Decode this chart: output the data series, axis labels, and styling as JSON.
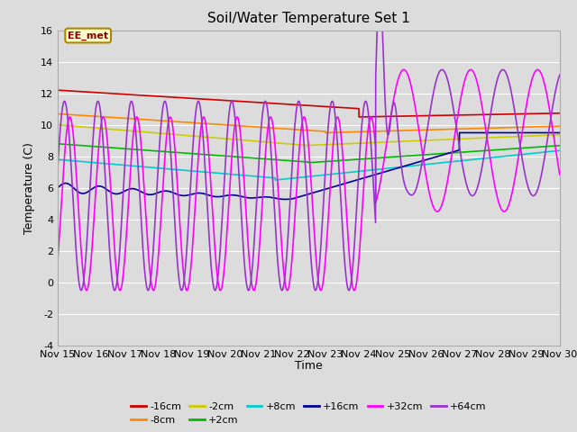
{
  "title": "Soil/Water Temperature Set 1",
  "xlabel": "Time",
  "ylabel": "Temperature (C)",
  "ylim": [
    -4,
    16
  ],
  "xlim": [
    0,
    15
  ],
  "yticks": [
    -4,
    -2,
    0,
    2,
    4,
    6,
    8,
    10,
    12,
    14,
    16
  ],
  "xtick_labels": [
    "Nov 15",
    "Nov 16",
    "Nov 17",
    "Nov 18",
    "Nov 19",
    "Nov 20",
    "Nov 21",
    "Nov 22",
    "Nov 23",
    "Nov 24",
    "Nov 25",
    "Nov 26",
    "Nov 27",
    "Nov 28",
    "Nov 29",
    "Nov 30"
  ],
  "bg_color": "#dcdcdc",
  "plot_bg_color": "#dcdcdc",
  "series_colors": [
    "#cc0000",
    "#ff8800",
    "#cccc00",
    "#00bb00",
    "#00cccc",
    "#000099",
    "#ff00ff",
    "#9933cc"
  ],
  "series_labels": [
    "-16cm",
    "-8cm",
    "-2cm",
    "+2cm",
    "+8cm",
    "+16cm",
    "+32cm",
    "+64cm"
  ],
  "annotation_text": "EE_met",
  "figsize": [
    6.4,
    4.8
  ],
  "dpi": 100
}
